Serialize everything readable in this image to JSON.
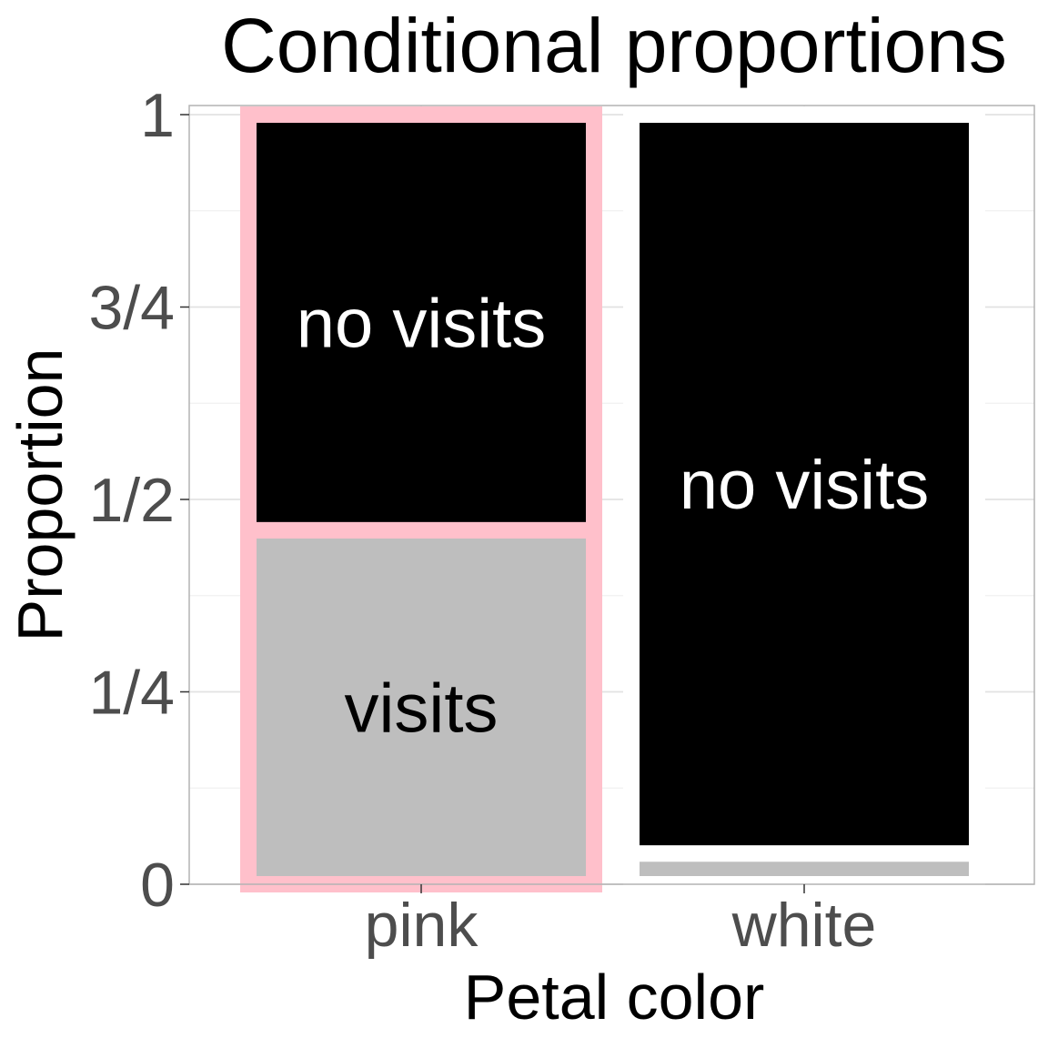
{
  "chart_data": {
    "type": "bar",
    "stacked": true,
    "normalized": true,
    "title": "Conditional proportions",
    "xlabel": "Petal color",
    "ylabel": "Proportion",
    "categories": [
      "pink",
      "white"
    ],
    "ylim": [
      0,
      1
    ],
    "yticks": [
      {
        "value": 0,
        "label": "0"
      },
      {
        "value": 0.25,
        "label": "1/4"
      },
      {
        "value": 0.5,
        "label": "1/2"
      },
      {
        "value": 0.75,
        "label": "3/4"
      },
      {
        "value": 1,
        "label": "1"
      }
    ],
    "grid": true,
    "legend": "none",
    "highlighted_category": "pink",
    "highlight_color": "#ffc0cb",
    "series": [
      {
        "key": "visits",
        "values": [
          0.46,
          0.04
        ],
        "color": "#bebebe",
        "text_color": "#000000",
        "labels": [
          "visits",
          ""
        ]
      },
      {
        "key": "no-visits",
        "values": [
          0.54,
          0.96
        ],
        "color": "#000000",
        "text_color": "#ffffff",
        "labels": [
          "no visits",
          "no visits"
        ]
      }
    ]
  }
}
